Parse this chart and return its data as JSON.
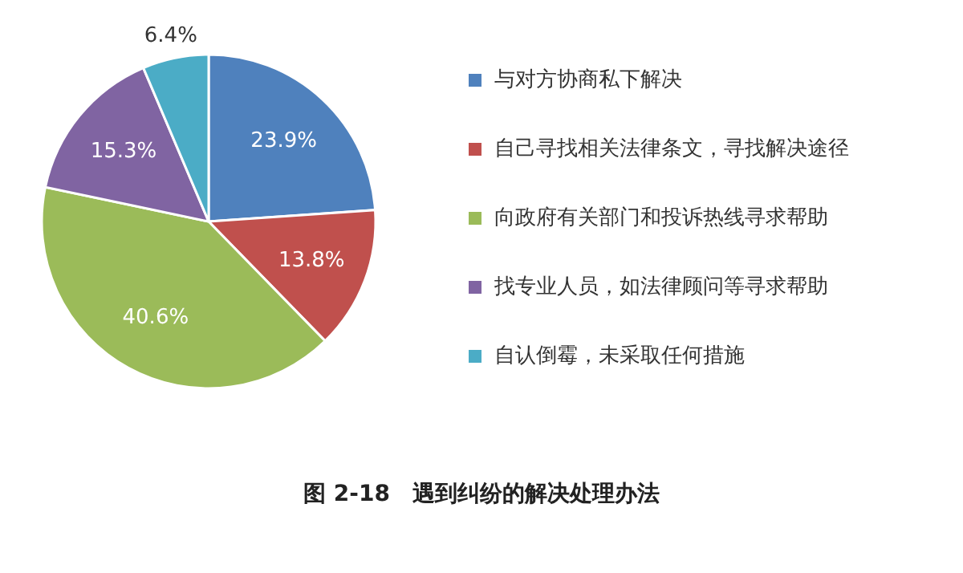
{
  "chart_data": {
    "type": "pie",
    "title": "图 2-18　遇到纠纷的解决处理办法",
    "categories": [
      "与对方协商私下解决",
      "自己寻找相关法律条文，寻找解决途径",
      "向政府有关部门和投诉热线寻求帮助",
      "找专业人员，如法律顾问等寻求帮助",
      "自认倒霉，未采取任何措施"
    ],
    "values": [
      23.9,
      13.8,
      40.6,
      15.3,
      6.4
    ],
    "colors": [
      "#4f81bd",
      "#c0504d",
      "#9bbb59",
      "#8064a2",
      "#4bacc6"
    ],
    "value_labels": [
      "23.9%",
      "13.8%",
      "40.6%",
      "15.3%",
      "6.4%"
    ],
    "legend": "right"
  }
}
